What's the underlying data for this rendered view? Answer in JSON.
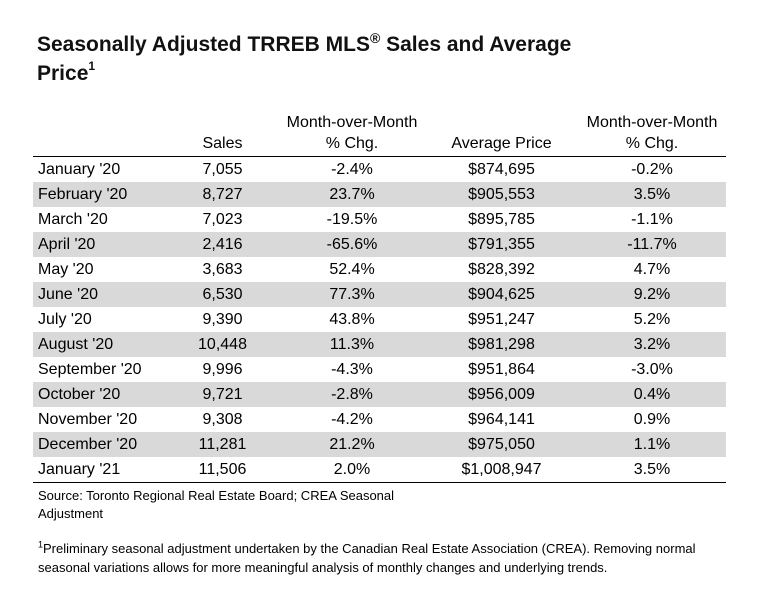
{
  "title": {
    "line1_pre": "Seasonally Adjusted TRREB MLS",
    "reg_mark": "®",
    "line1_post": " Sales and Average",
    "line2": "Price",
    "superscript": "1"
  },
  "table": {
    "headers": [
      "",
      "Sales",
      "Month-over-Month % Chg.",
      "Average Price",
      "Month-over-Month % Chg."
    ],
    "rows": [
      {
        "month": "January '20",
        "sales": "7,055",
        "sales_chg": "-2.4%",
        "avg_price": "$874,695",
        "price_chg": "-0.2%"
      },
      {
        "month": "February '20",
        "sales": "8,727",
        "sales_chg": "23.7%",
        "avg_price": "$905,553",
        "price_chg": "3.5%"
      },
      {
        "month": "March '20",
        "sales": "7,023",
        "sales_chg": "-19.5%",
        "avg_price": "$895,785",
        "price_chg": "-1.1%"
      },
      {
        "month": "April '20",
        "sales": "2,416",
        "sales_chg": "-65.6%",
        "avg_price": "$791,355",
        "price_chg": "-11.7%"
      },
      {
        "month": "May '20",
        "sales": "3,683",
        "sales_chg": "52.4%",
        "avg_price": "$828,392",
        "price_chg": "4.7%"
      },
      {
        "month": "June '20",
        "sales": "6,530",
        "sales_chg": "77.3%",
        "avg_price": "$904,625",
        "price_chg": "9.2%"
      },
      {
        "month": "July '20",
        "sales": "9,390",
        "sales_chg": "43.8%",
        "avg_price": "$951,247",
        "price_chg": "5.2%"
      },
      {
        "month": "August '20",
        "sales": "10,448",
        "sales_chg": "11.3%",
        "avg_price": "$981,298",
        "price_chg": "3.2%"
      },
      {
        "month": "September '20",
        "sales": "9,996",
        "sales_chg": "-4.3%",
        "avg_price": "$951,864",
        "price_chg": "-3.0%"
      },
      {
        "month": "October '20",
        "sales": "9,721",
        "sales_chg": "-2.8%",
        "avg_price": "$956,009",
        "price_chg": "0.4%"
      },
      {
        "month": "November '20",
        "sales": "9,308",
        "sales_chg": "-4.2%",
        "avg_price": "$964,141",
        "price_chg": "0.9%"
      },
      {
        "month": "December '20",
        "sales": "11,281",
        "sales_chg": "21.2%",
        "avg_price": "$975,050",
        "price_chg": "1.1%"
      },
      {
        "month": "January '21",
        "sales": "11,506",
        "sales_chg": "2.0%",
        "avg_price": "$1,008,947",
        "price_chg": "3.5%"
      }
    ]
  },
  "source": "Source: Toronto Regional Real Estate Board; CREA Seasonal Adjustment",
  "footnote": {
    "marker": "1",
    "text": "Preliminary seasonal adjustment undertaken by the Canadian Real Estate Association (CREA).  Removing normal seasonal variations allows for more meaningful analysis of monthly changes and underlying trends."
  },
  "colors": {
    "row_shade": "#d9d9d9"
  }
}
